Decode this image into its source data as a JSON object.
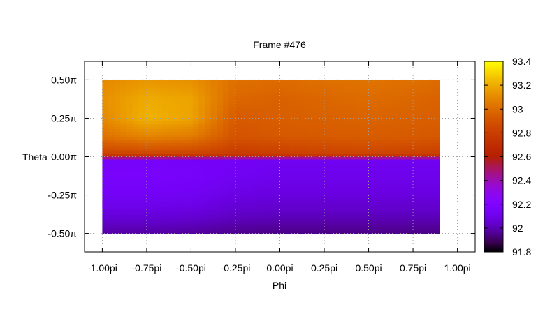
{
  "chart_data": {
    "type": "heatmap",
    "title": "Frame #476",
    "xlabel": "Phi",
    "ylabel": "Theta",
    "xlim": [
      -1.1,
      1.1
    ],
    "ylim": [
      -0.62,
      0.62
    ],
    "x_ticks": [
      {
        "value": -1.0,
        "label": "-1.00pi"
      },
      {
        "value": -0.75,
        "label": "-0.75pi"
      },
      {
        "value": -0.5,
        "label": "-0.50pi"
      },
      {
        "value": -0.25,
        "label": "-0.25pi"
      },
      {
        "value": 0.0,
        "label": "0.00pi"
      },
      {
        "value": 0.25,
        "label": "0.25pi"
      },
      {
        "value": 0.5,
        "label": "0.50pi"
      },
      {
        "value": 0.75,
        "label": "0.75pi"
      },
      {
        "value": 1.0,
        "label": "1.00pi"
      }
    ],
    "y_ticks": [
      {
        "value": 0.5,
        "label": "0.50π"
      },
      {
        "value": 0.25,
        "label": "0.25π"
      },
      {
        "value": 0.0,
        "label": "0.00π"
      },
      {
        "value": -0.25,
        "label": "-0.25π"
      },
      {
        "value": -0.5,
        "label": "-0.50π"
      }
    ],
    "grid": true,
    "colorbar": {
      "min": 91.8,
      "max": 93.4,
      "tick_values": [
        91.8,
        92,
        92.2,
        92.4,
        92.6,
        92.8,
        93,
        93.2,
        93.4
      ],
      "tick_labels": [
        "91.8",
        "92",
        "92.2",
        "92.4",
        "92.6",
        "92.8",
        "93",
        "93.2",
        "93.4"
      ]
    },
    "x": [
      -1.0,
      -0.75,
      -0.5,
      -0.25,
      0.0,
      0.25,
      0.5,
      0.75,
      0.9
    ],
    "y": [
      0.5,
      0.375,
      0.25,
      0.125,
      0.02,
      0.0,
      -0.02,
      -0.125,
      -0.25,
      -0.375,
      -0.5
    ],
    "z": [
      [
        93.1,
        93.14,
        93.12,
        93.02,
        93.0,
        93.02,
        93.03,
        93.02,
        93.0
      ],
      [
        93.12,
        93.2,
        93.18,
        92.98,
        92.96,
        92.98,
        93.0,
        92.98,
        92.96
      ],
      [
        93.1,
        93.22,
        93.18,
        92.93,
        92.95,
        92.96,
        92.97,
        92.96,
        92.95
      ],
      [
        93.02,
        93.08,
        93.05,
        92.9,
        92.92,
        92.93,
        92.94,
        92.93,
        92.92
      ],
      [
        92.82,
        92.84,
        92.83,
        92.78,
        92.8,
        92.82,
        92.83,
        92.82,
        92.8
      ],
      [
        92.7,
        92.7,
        92.7,
        92.7,
        92.7,
        92.7,
        92.7,
        92.7,
        92.7
      ],
      [
        92.15,
        92.15,
        92.14,
        92.13,
        92.12,
        92.12,
        92.12,
        92.12,
        92.12
      ],
      [
        92.16,
        92.16,
        92.15,
        92.12,
        92.1,
        92.1,
        92.1,
        92.1,
        92.1
      ],
      [
        92.13,
        92.13,
        92.12,
        92.08,
        92.07,
        92.07,
        92.07,
        92.07,
        92.07
      ],
      [
        92.07,
        92.07,
        92.06,
        92.03,
        92.02,
        92.02,
        92.02,
        92.02,
        92.02
      ],
      [
        91.98,
        91.98,
        91.97,
        91.95,
        91.94,
        91.94,
        91.94,
        91.94,
        91.94
      ]
    ],
    "colors": {
      "frame": "#000000",
      "grid": "#a0a0a0",
      "background": "#ffffff"
    }
  }
}
